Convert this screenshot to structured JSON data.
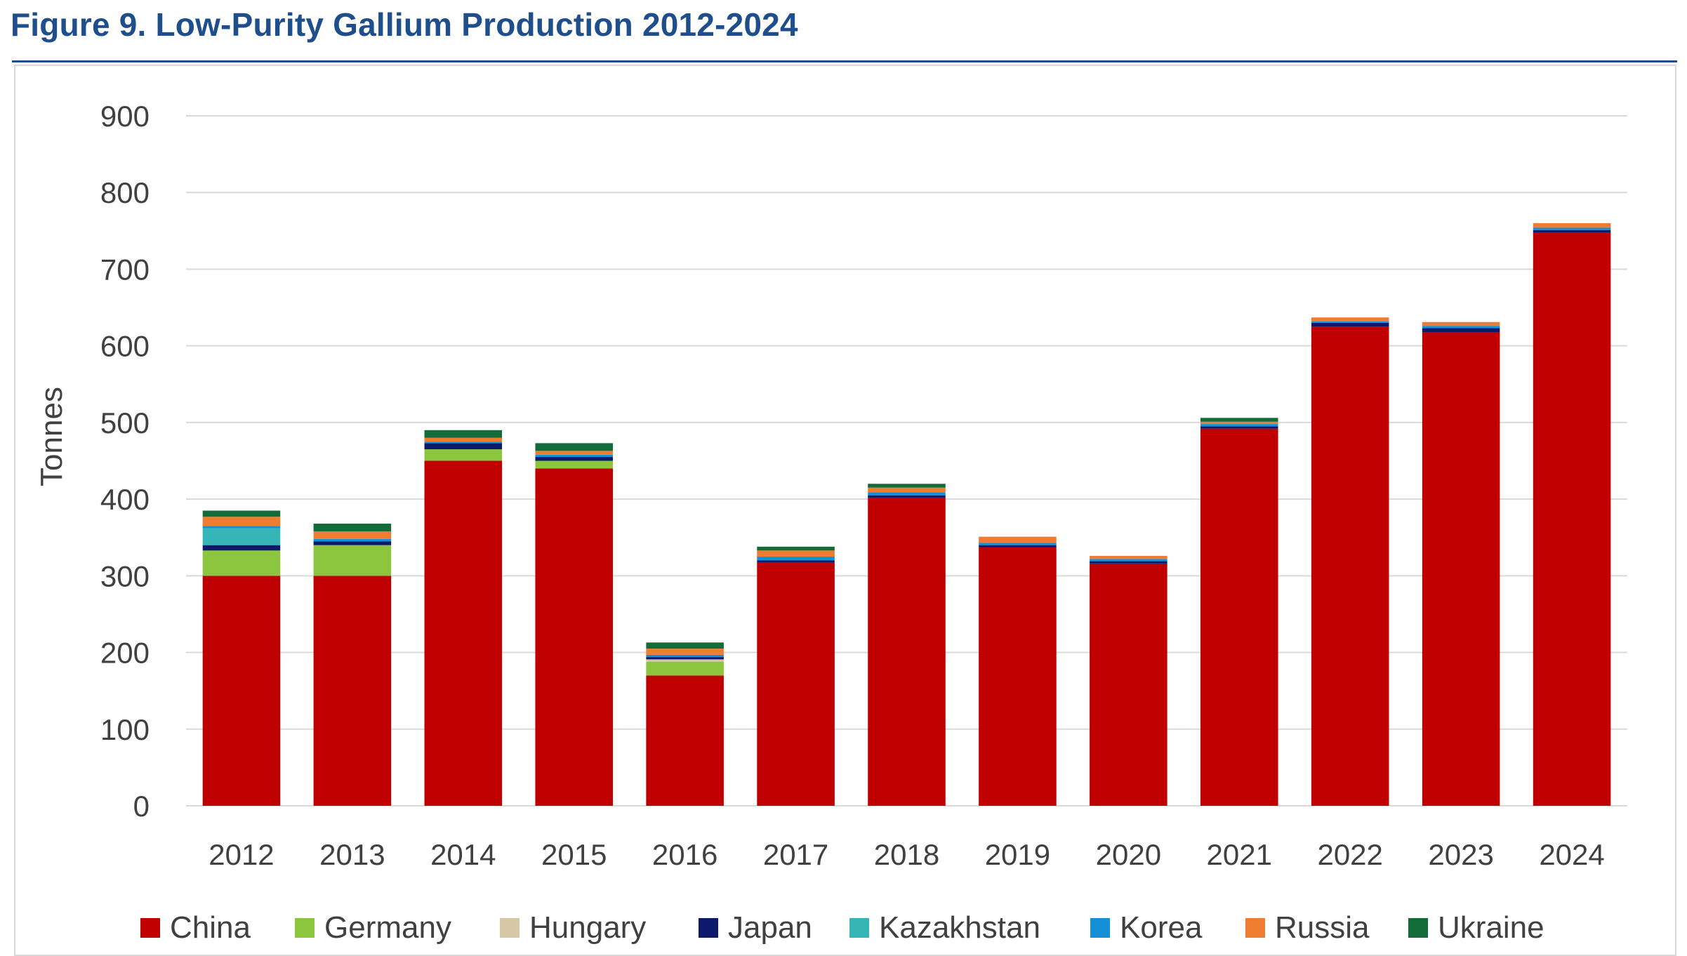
{
  "figure_title": "Figure 9. Low-Purity Gallium Production 2012-2024",
  "colors": {
    "title": "#1f4e8c",
    "China": "#c00000",
    "Germany": "#8cc63f",
    "Hungary": "#d6c7a7",
    "Japan": "#0d1a6b",
    "Kazakhstan": "#35b5b5",
    "Korea": "#1590d6",
    "Russia": "#ee7d31",
    "Ukraine": "#126b38",
    "grid": "#d9d9d9"
  },
  "chart_data": {
    "type": "bar",
    "stacked": true,
    "title": "Figure 9. Low-Purity Gallium Production 2012-2024",
    "xlabel": "",
    "ylabel": "Tonnes",
    "ylim": [
      0,
      900
    ],
    "yticks": [
      0,
      100,
      200,
      300,
      400,
      500,
      600,
      700,
      800,
      900
    ],
    "grid": true,
    "legend_position": "bottom",
    "categories": [
      "2012",
      "2013",
      "2014",
      "2015",
      "2016",
      "2017",
      "2018",
      "2019",
      "2020",
      "2021",
      "2022",
      "2023",
      "2024"
    ],
    "series": [
      {
        "name": "China",
        "values": [
          300,
          300,
          450,
          440,
          170,
          317,
          402,
          337,
          316,
          492,
          625,
          618,
          748
        ]
      },
      {
        "name": "Germany",
        "values": [
          33,
          40,
          15,
          10,
          18,
          0,
          0,
          0,
          0,
          0,
          0,
          0,
          0
        ]
      },
      {
        "name": "Hungary",
        "values": [
          0,
          0,
          0,
          0,
          3,
          0,
          0,
          0,
          0,
          0,
          0,
          0,
          0
        ]
      },
      {
        "name": "Japan",
        "values": [
          7,
          5,
          8,
          5,
          3,
          3,
          3,
          3,
          3,
          3,
          5,
          5,
          3
        ]
      },
      {
        "name": "Kazakhstan",
        "values": [
          22,
          0,
          0,
          0,
          0,
          0,
          0,
          0,
          0,
          0,
          0,
          0,
          0
        ]
      },
      {
        "name": "Korea",
        "values": [
          3,
          3,
          2,
          3,
          3,
          5,
          4,
          3,
          3,
          3,
          2,
          3,
          3
        ]
      },
      {
        "name": "Russia",
        "values": [
          12,
          10,
          5,
          5,
          8,
          8,
          6,
          8,
          4,
          3,
          5,
          5,
          6
        ]
      },
      {
        "name": "Ukraine",
        "values": [
          8,
          10,
          10,
          10,
          8,
          5,
          5,
          0,
          0,
          5,
          0,
          0,
          0
        ]
      }
    ]
  }
}
